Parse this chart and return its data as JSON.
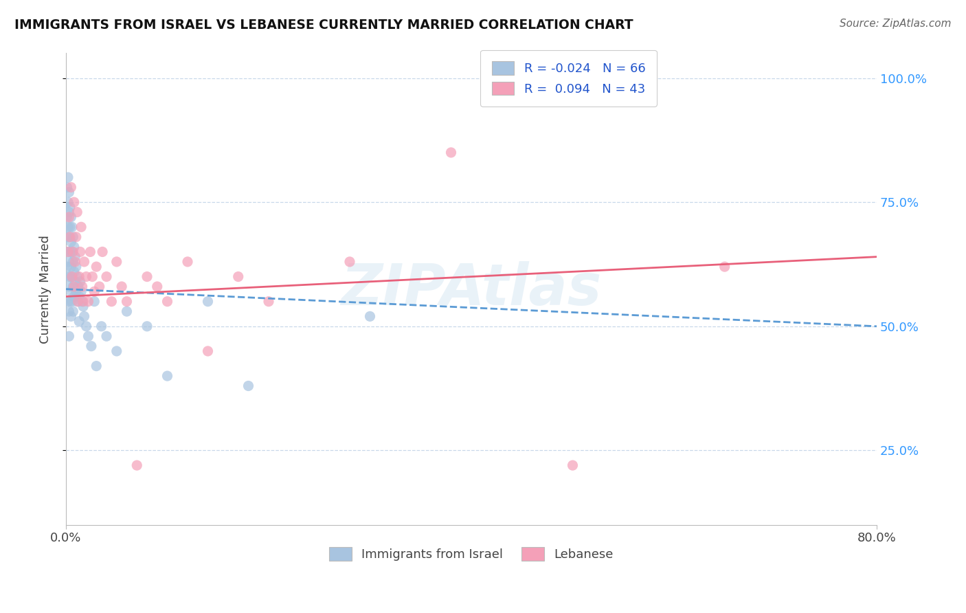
{
  "title": "IMMIGRANTS FROM ISRAEL VS LEBANESE CURRENTLY MARRIED CORRELATION CHART",
  "source": "Source: ZipAtlas.com",
  "ylabel": "Currently Married",
  "legend_label1": "Immigrants from Israel",
  "legend_label2": "Lebanese",
  "r1": -0.024,
  "n1": 66,
  "r2": 0.094,
  "n2": 43,
  "color1": "#a8c4e0",
  "color2": "#f4a0b8",
  "trend1_color": "#5b9bd5",
  "trend2_color": "#e8607a",
  "watermark": "ZIPAtlas",
  "xlim": [
    0.0,
    0.8
  ],
  "ylim": [
    0.1,
    1.05
  ],
  "yticks_right": [
    0.25,
    0.5,
    0.75,
    1.0
  ],
  "ytick_labels_right": [
    "25.0%",
    "50.0%",
    "75.0%",
    "100.0%"
  ],
  "grid_color": "#c8d8ea",
  "background_color": "#ffffff",
  "trend1_start": 0.575,
  "trend1_end": 0.5,
  "trend2_start": 0.56,
  "trend2_end": 0.64,
  "scatter1_x": [
    0.001,
    0.001,
    0.001,
    0.001,
    0.002,
    0.002,
    0.002,
    0.002,
    0.002,
    0.002,
    0.003,
    0.003,
    0.003,
    0.003,
    0.003,
    0.003,
    0.003,
    0.004,
    0.004,
    0.004,
    0.004,
    0.004,
    0.005,
    0.005,
    0.005,
    0.005,
    0.005,
    0.006,
    0.006,
    0.006,
    0.006,
    0.007,
    0.007,
    0.007,
    0.007,
    0.008,
    0.008,
    0.008,
    0.009,
    0.009,
    0.01,
    0.01,
    0.011,
    0.011,
    0.012,
    0.013,
    0.013,
    0.014,
    0.015,
    0.016,
    0.017,
    0.018,
    0.02,
    0.022,
    0.025,
    0.028,
    0.03,
    0.035,
    0.04,
    0.05,
    0.06,
    0.08,
    0.1,
    0.14,
    0.18,
    0.3
  ],
  "scatter1_y": [
    0.78,
    0.72,
    0.68,
    0.62,
    0.8,
    0.75,
    0.7,
    0.65,
    0.6,
    0.55,
    0.77,
    0.73,
    0.68,
    0.63,
    0.58,
    0.53,
    0.48,
    0.74,
    0.7,
    0.65,
    0.6,
    0.55,
    0.72,
    0.67,
    0.62,
    0.57,
    0.52,
    0.7,
    0.65,
    0.6,
    0.55,
    0.68,
    0.63,
    0.58,
    0.53,
    0.66,
    0.61,
    0.56,
    0.64,
    0.59,
    0.62,
    0.57,
    0.6,
    0.55,
    0.58,
    0.56,
    0.51,
    0.59,
    0.57,
    0.55,
    0.54,
    0.52,
    0.5,
    0.48,
    0.46,
    0.55,
    0.42,
    0.5,
    0.48,
    0.45,
    0.53,
    0.5,
    0.4,
    0.55,
    0.38,
    0.52
  ],
  "scatter2_x": [
    0.002,
    0.003,
    0.004,
    0.005,
    0.006,
    0.007,
    0.008,
    0.008,
    0.009,
    0.01,
    0.011,
    0.012,
    0.013,
    0.014,
    0.015,
    0.016,
    0.017,
    0.018,
    0.02,
    0.022,
    0.024,
    0.026,
    0.028,
    0.03,
    0.033,
    0.036,
    0.04,
    0.045,
    0.05,
    0.055,
    0.06,
    0.07,
    0.08,
    0.09,
    0.1,
    0.12,
    0.14,
    0.17,
    0.2,
    0.28,
    0.38,
    0.5,
    0.65
  ],
  "scatter2_y": [
    0.65,
    0.72,
    0.68,
    0.78,
    0.6,
    0.65,
    0.75,
    0.58,
    0.63,
    0.68,
    0.73,
    0.55,
    0.6,
    0.65,
    0.7,
    0.58,
    0.55,
    0.63,
    0.6,
    0.55,
    0.65,
    0.6,
    0.57,
    0.62,
    0.58,
    0.65,
    0.6,
    0.55,
    0.63,
    0.58,
    0.55,
    0.22,
    0.6,
    0.58,
    0.55,
    0.63,
    0.45,
    0.6,
    0.55,
    0.63,
    0.85,
    0.22,
    0.62
  ]
}
